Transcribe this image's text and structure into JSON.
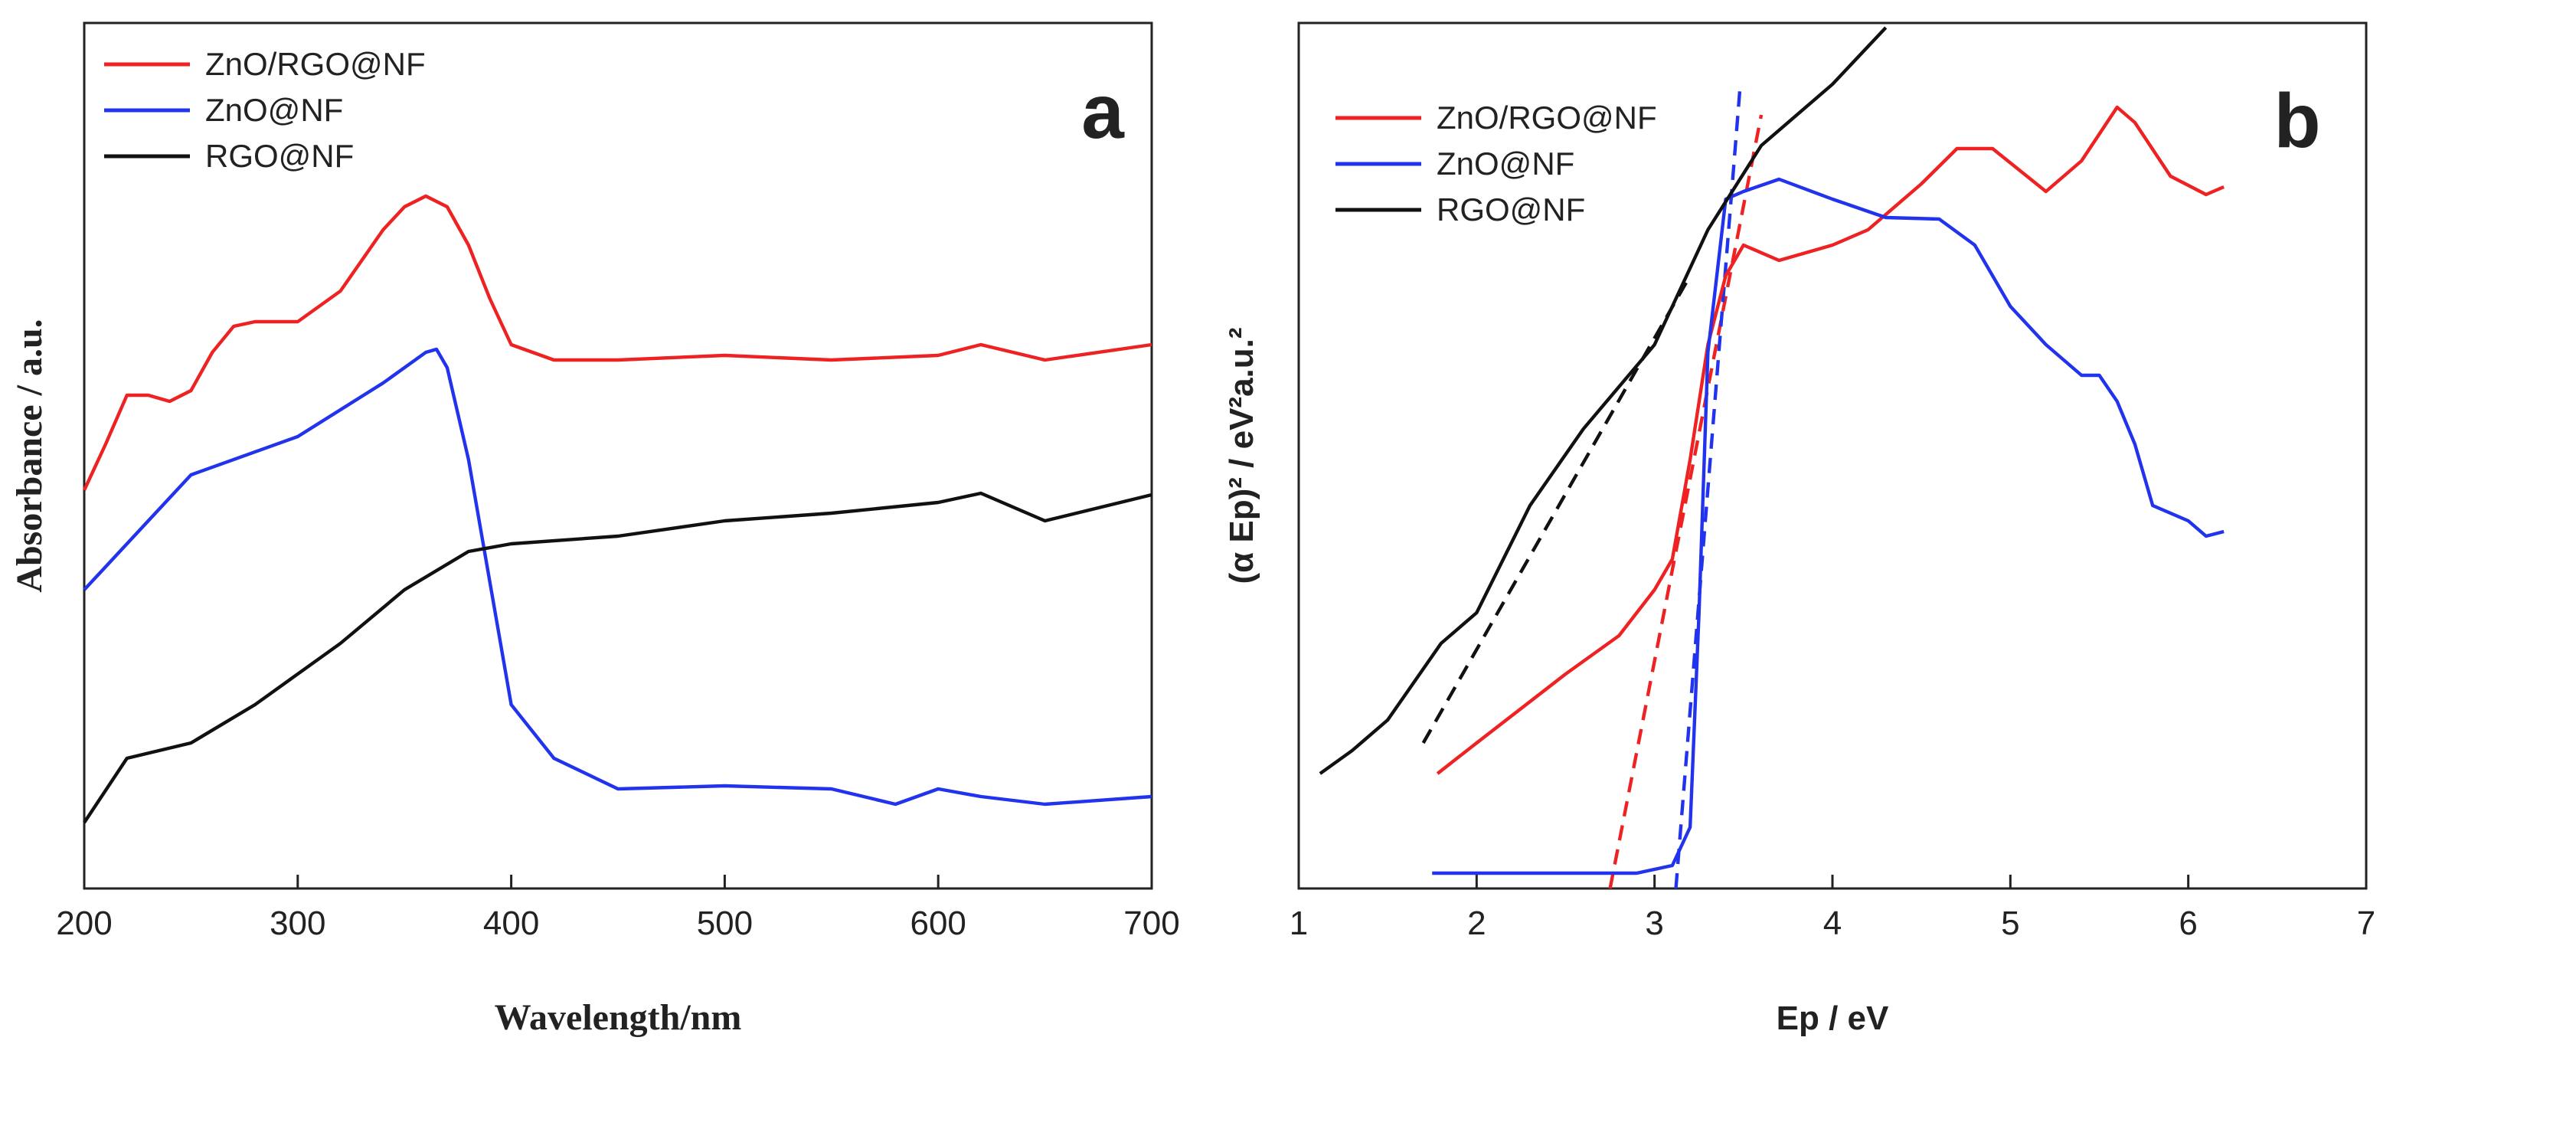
{
  "chart_data": [
    {
      "type": "line",
      "label": "a",
      "xlabel": "Wavelength/nm",
      "ylabel": "Absorbance / a.u.",
      "xlim": [
        200,
        700
      ],
      "xticks": [
        200,
        300,
        400,
        500,
        600,
        700
      ],
      "ylim": [
        0,
        565
      ],
      "legend": "upper left",
      "series": [
        {
          "name": "ZnO/RGO@NF",
          "color": "#ee2222",
          "x": [
            200,
            210,
            220,
            230,
            240,
            250,
            260,
            270,
            280,
            300,
            320,
            340,
            350,
            360,
            370,
            380,
            390,
            400,
            420,
            450,
            500,
            550,
            600,
            620,
            650,
            700
          ],
          "values": [
            260,
            290,
            322,
            322,
            318,
            325,
            350,
            367,
            370,
            370,
            390,
            430,
            445,
            452,
            445,
            420,
            385,
            355,
            345,
            345,
            348,
            345,
            348,
            355,
            345,
            355
          ]
        },
        {
          "name": "ZnO@NF",
          "color": "#2233ee",
          "x": [
            200,
            220,
            250,
            300,
            340,
            360,
            365,
            370,
            380,
            390,
            400,
            420,
            450,
            500,
            550,
            580,
            600,
            620,
            650,
            700
          ],
          "values": [
            195,
            225,
            270,
            295,
            330,
            350,
            352,
            340,
            280,
            200,
            120,
            85,
            65,
            67,
            65,
            55,
            65,
            60,
            55,
            60
          ]
        },
        {
          "name": "RGO@NF",
          "color": "#111111",
          "x": [
            200,
            220,
            250,
            280,
            320,
            350,
            380,
            400,
            450,
            500,
            550,
            600,
            620,
            650,
            700
          ],
          "values": [
            43,
            85,
            95,
            120,
            160,
            195,
            220,
            225,
            230,
            240,
            245,
            252,
            258,
            240,
            257
          ]
        }
      ]
    },
    {
      "type": "line",
      "label": "b",
      "xlabel": "Ep / eV",
      "ylabel": "(α Ep)² / eV²a.u.²",
      "xlim": [
        1,
        7
      ],
      "xticks": [
        1,
        2,
        3,
        4,
        5,
        6,
        7
      ],
      "ylim": [
        0,
        565
      ],
      "legend": "upper left",
      "series": [
        {
          "name": "ZnO/RGO@NF",
          "color": "#ee2222",
          "x": [
            1.78,
            2.0,
            2.5,
            2.8,
            3.0,
            3.1,
            3.2,
            3.3,
            3.4,
            3.5,
            3.7,
            4.0,
            4.2,
            4.5,
            4.7,
            4.9,
            5.2,
            5.4,
            5.6,
            5.7,
            5.9,
            6.1,
            6.2
          ],
          "values": [
            75,
            95,
            140,
            165,
            195,
            215,
            280,
            355,
            400,
            420,
            410,
            420,
            430,
            460,
            483,
            483,
            455,
            475,
            510,
            500,
            465,
            453,
            458
          ]
        },
        {
          "name": "ZnO@NF",
          "color": "#2233ee",
          "x": [
            1.75,
            2.9,
            3.1,
            3.2,
            3.25,
            3.3,
            3.4,
            3.5,
            3.7,
            4.0,
            4.3,
            4.6,
            4.8,
            5.0,
            5.2,
            5.4,
            5.5,
            5.6,
            5.7,
            5.8,
            6.0,
            6.1,
            6.2
          ],
          "values": [
            10,
            10,
            15,
            40,
            180,
            350,
            450,
            455,
            463,
            450,
            438,
            437,
            420,
            380,
            355,
            335,
            335,
            318,
            290,
            250,
            240,
            230,
            233
          ]
        },
        {
          "name": "RGO@NF",
          "color": "#111111",
          "x": [
            1.12,
            1.3,
            1.5,
            1.8,
            2.0,
            2.3,
            2.6,
            3.0,
            3.3,
            3.6,
            4.0,
            4.3
          ],
          "values": [
            75,
            90,
            110,
            160,
            180,
            250,
            300,
            355,
            430,
            485,
            525,
            562
          ]
        }
      ],
      "fit_lines": [
        {
          "color": "#111111",
          "x": [
            1.7,
            3.2
          ],
          "values": [
            95,
            400
          ]
        },
        {
          "color": "#ee2222",
          "x": [
            2.75,
            3.6
          ],
          "values": [
            0,
            505
          ]
        },
        {
          "color": "#2233ee",
          "x": [
            3.12,
            3.48
          ],
          "values": [
            0,
            522
          ]
        }
      ]
    }
  ]
}
